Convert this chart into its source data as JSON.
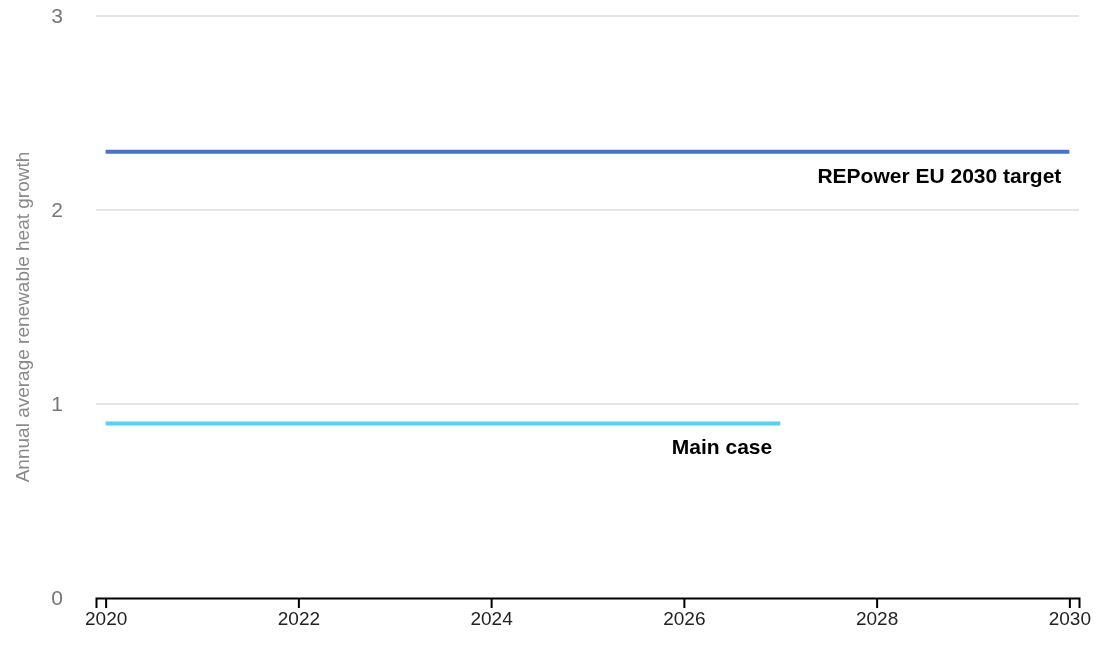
{
  "chart_data": {
    "type": "line",
    "ylabel": "Annual average renewable heat growth",
    "xlim": [
      2019.9,
      2030.1
    ],
    "ylim": [
      0,
      3
    ],
    "xticks": [
      2020,
      2022,
      2024,
      2026,
      2028,
      2030
    ],
    "yticks": [
      0,
      1,
      2,
      3
    ],
    "grid": "y",
    "marker": "none",
    "line_style": "solid",
    "series": [
      {
        "name": "REPower EU 2030 target",
        "color": "#4472d0",
        "x": [
          2020,
          2030
        ],
        "values": [
          2.3,
          2.3
        ]
      },
      {
        "name": "Main case",
        "color": "#4fd4f5",
        "x": [
          2020,
          2027
        ],
        "values": [
          0.9,
          0.9
        ]
      }
    ]
  }
}
